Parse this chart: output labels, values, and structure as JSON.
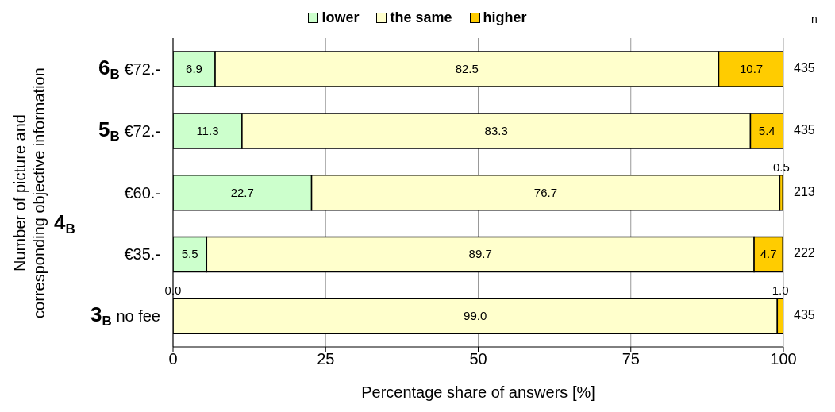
{
  "chart_data": {
    "type": "bar",
    "orientation": "horizontal",
    "stacked": true,
    "xlabel": "Percentage share of answers [%]",
    "ylabel": "Number of picture and corresponding objective information",
    "categories": [
      "6$_{B}$ €72.-",
      "5$_{B}$ €72.-",
      "€60.-",
      "€35.-",
      "3$_{B}$ no fee"
    ],
    "series": [
      {
        "name": "lower",
        "color": "#ccffcc",
        "values": [
          6.9,
          11.3,
          22.7,
          5.5,
          0.0
        ]
      },
      {
        "name": "the same",
        "color": "#ffffcc",
        "values": [
          82.5,
          83.3,
          76.7,
          89.7,
          99.0
        ]
      },
      {
        "name": "higher",
        "color": "#ffcc00",
        "values": [
          10.7,
          5.4,
          0.5,
          4.7,
          1.0
        ]
      }
    ],
    "value_labels": [
      [
        "6.9",
        "11.3",
        "22.7",
        "5.5",
        "0.0"
      ],
      [
        "82.5",
        "83.3",
        "76.7",
        "89.7",
        "99.0"
      ],
      [
        "10.7",
        "5.4",
        "0.5",
        "4.7",
        "1.0"
      ]
    ],
    "annotations": [
      "4$_{B}$",
      "n",
      "435",
      "435",
      "213",
      "222",
      "435"
    ],
    "xlim": [
      0,
      100
    ],
    "xticks": [
      0,
      25,
      50,
      75,
      100
    ],
    "grid": "x",
    "legend": "top"
  }
}
